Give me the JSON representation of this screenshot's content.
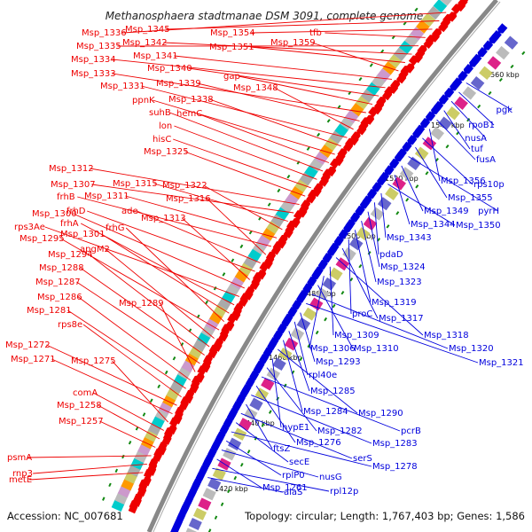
{
  "title": "Methanosphaera stadtmanae DSM 3091, complete genome",
  "accession": "Accession: NC_007681",
  "summary": "Topology: circular; Length: 1,767,403 bp; Genes: 1,586",
  "colors": {
    "forward": "#ee0000",
    "reverse": "#0000dd",
    "dot": "#118811",
    "backbone": "#888888"
  },
  "ticks": [
    "1420 kbp",
    "1440 kbp",
    "1460 kbp",
    "1480 kbp",
    "1500 kbp",
    "1520 kbp",
    "1540 kbp",
    "1560 kbp"
  ],
  "left_labels": [
    "Msp_1336",
    "Msp_1345",
    "Msp_1354",
    "tfb",
    "Msp_1335",
    "Msp_1342",
    "Msp_1351",
    "Msp_1359",
    "Msp_1341",
    "Msp_1334",
    "Msp_1340",
    "gap",
    "Msp_1333",
    "Msp_1339",
    "Msp_1348",
    "Msp_1331",
    "Msp_1338",
    "ppnK",
    "hemC",
    "suhB",
    "lon",
    "hisC",
    "Msp_1325",
    "Msp_1312",
    "Msp_1307",
    "Msp_1315",
    "Msp_1322",
    "Msp_1311",
    "frhB",
    "Msp_1316",
    "ade",
    "frhD",
    "Msp_1313",
    "Msp_1300",
    "rps3Ae",
    "frhA",
    "Msp_1301",
    "frhG",
    "Msp_1295",
    "apgM2",
    "Msp_1294",
    "Msp_1288",
    "Msp_1287",
    "Msp_1289",
    "Msp_1286",
    "Msp_1281",
    "rps8e",
    "Msp_1272",
    "Msp_1271",
    "Msp_1275",
    "comA",
    "Msp_1258",
    "Msp_1257",
    "psmA",
    "rnp3",
    "metE"
  ],
  "right_labels": [
    "pgk",
    "rpoB1",
    "nusA",
    "tuf",
    "fusA",
    "Msp_1356",
    "rps10p",
    "Msp_1355",
    "pyrH",
    "Msp_1349",
    "Msp_1344",
    "Msp_1350",
    "Msp_1343",
    "pdaD",
    "Msp_1324",
    "Msp_1323",
    "Msp_1319",
    "proC",
    "Msp_1317",
    "Msp_1318",
    "Msp_1309",
    "Msp_1306",
    "Msp_1310",
    "Msp_1320",
    "Msp_1321",
    "Msp_1293",
    "rpl40e",
    "Msp_1285",
    "Msp_1284",
    "Msp_1290",
    "hypE1",
    "Msp_1282",
    "pcrB",
    "Msp_1276",
    "Msp_1283",
    "ftsZ",
    "serS",
    "secE",
    "Msp_1278",
    "rplP0",
    "nusG",
    "Msp_1261",
    "rpl12p",
    "alaS"
  ]
}
